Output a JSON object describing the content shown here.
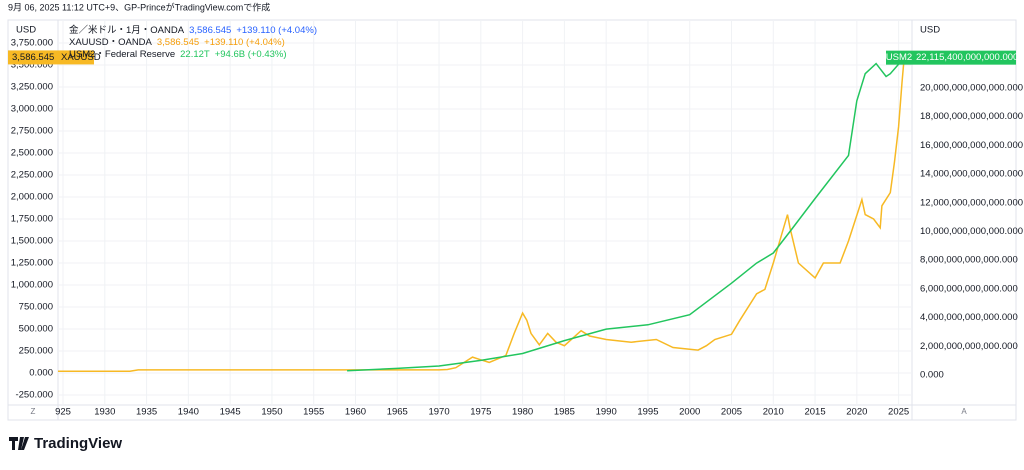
{
  "header": "9月 06, 2025 11:12 UTC+9、GP-PrinceがTradingView.comで作成",
  "brand": "TradingView",
  "chart_data": {
    "type": "line",
    "symbol": "金／米ドル・1月・OANDA",
    "symbol_value": "3,586.545",
    "symbol_change": "+139.110 (+4.04%)",
    "y_unit": "USD",
    "y2_unit": "USD",
    "scale_buttons": [
      "Z",
      "A"
    ],
    "xlim": [
      1924.4,
      2026.6
    ],
    "xticks": [
      {
        "value": 1925,
        "label": "925"
      },
      1930,
      1935,
      1940,
      1945,
      1950,
      1955,
      1960,
      1965,
      1970,
      1975,
      1980,
      1985,
      1990,
      1995,
      2000,
      2005,
      2010,
      2015,
      2020,
      2025
    ],
    "ylim": [
      -364,
      3989
    ],
    "yticks": [
      {
        "value": -250,
        "label": "-250.000"
      },
      {
        "value": 0,
        "label": "0.000"
      },
      {
        "value": 250,
        "label": "250.000"
      },
      {
        "value": 500,
        "label": "500.000"
      },
      {
        "value": 750,
        "label": "750.000"
      },
      {
        "value": 1000,
        "label": "1,000.000"
      },
      {
        "value": 1250,
        "label": "1,250.000"
      },
      {
        "value": 1500,
        "label": "1,500.000"
      },
      {
        "value": 1750,
        "label": "1,750.000"
      },
      {
        "value": 2000,
        "label": "2,000.000"
      },
      {
        "value": 2250,
        "label": "2,250.000"
      },
      {
        "value": 2500,
        "label": "2,500.000"
      },
      {
        "value": 2750,
        "label": "2,750.000"
      },
      {
        "value": 3000,
        "label": "3,000.000"
      },
      {
        "value": 3250,
        "label": "3,250.000"
      },
      {
        "value": 3500,
        "label": "3,500.000"
      },
      {
        "value": 3750,
        "label": "3,750.000"
      }
    ],
    "y2lim": [
      -2090000000000,
      24600000000000
    ],
    "y2ticks": [
      {
        "value": 0,
        "label": "0.000"
      },
      {
        "value": 2000000000000,
        "label": "2,000,000,000,000.000"
      },
      {
        "value": 4000000000000,
        "label": "4,000,000,000,000.000"
      },
      {
        "value": 6000000000000,
        "label": "6,000,000,000,000.000"
      },
      {
        "value": 8000000000000,
        "label": "8,000,000,000,000.000"
      },
      {
        "value": 10000000000000,
        "label": "10,000,000,000,000.000"
      },
      {
        "value": 12000000000000,
        "label": "12,000,000,000,000.000"
      },
      {
        "value": 14000000000000,
        "label": "14,000,000,000,000.000"
      },
      {
        "value": 16000000000000,
        "label": "16,000,000,000,000.000"
      },
      {
        "value": 18000000000000,
        "label": "18,000,000,000,000.000"
      },
      {
        "value": 20000000000000,
        "label": "20,000,000,000,000.000"
      }
    ],
    "series": [
      {
        "name": "XAUUSD・OANDA",
        "color": "#f7b924",
        "value_color": "#f59e0b",
        "legend_value": "3,586.545",
        "legend_change": "+139.110 (+4.04%)",
        "badge_name": "XAUUSD",
        "badge_value": "3,586.545",
        "x": [
          1924.4,
          1933,
          1934,
          1970,
          1971,
          1972,
          1974,
          1975,
          1976,
          1978,
          1979,
          1980,
          1980.5,
          1981,
          1982,
          1983,
          1984,
          1985,
          1987,
          1988,
          1990,
          1993,
          1996,
          1998,
          2000,
          2001,
          2002,
          2003,
          2005,
          2006,
          2008,
          2009,
          2010,
          2011.7,
          2012,
          2013,
          2015,
          2016,
          2018,
          2019,
          2020.6,
          2021,
          2022,
          2022.8,
          2023,
          2024,
          2024.5,
          2025,
          2025.4,
          2025.67
        ],
        "values": [
          20.67,
          20.67,
          35,
          35,
          40,
          60,
          180,
          150,
          120,
          200,
          450,
          680,
          600,
          450,
          320,
          450,
          350,
          310,
          480,
          420,
          380,
          350,
          380,
          290,
          270,
          260,
          310,
          380,
          440,
          600,
          900,
          950,
          1250,
          1800,
          1650,
          1250,
          1080,
          1250,
          1250,
          1500,
          1970,
          1800,
          1750,
          1650,
          1900,
          2050,
          2400,
          2800,
          3300,
          3586.545
        ]
      },
      {
        "name": "USM2・Federal Reserve",
        "color": "#22c55e",
        "value_color": "#22c55e",
        "axis": "y2",
        "legend_value": "22.12T",
        "legend_change": "+94.6B (+0.43%)",
        "badge_name": "USM2",
        "badge_value": "22,115,400,000,000.000",
        "x": [
          1959,
          1965,
          1970,
          1975,
          1980,
          1985,
          1990,
          1995,
          2000,
          2005,
          2008,
          2010,
          2012,
          2015,
          2019,
          2020,
          2021,
          2022.3,
          2023.5,
          2024,
          2025.67
        ],
        "values": [
          290000000000,
          460000000000,
          630000000000,
          1020000000000,
          1500000000000,
          2400000000000,
          3200000000000,
          3500000000000,
          4200000000000,
          6400000000000,
          7800000000000,
          8500000000000,
          10000000000000,
          12300000000000,
          15300000000000,
          19100000000000,
          21000000000000,
          21700000000000,
          20800000000000,
          21000000000000,
          22115400000000
        ]
      }
    ]
  }
}
